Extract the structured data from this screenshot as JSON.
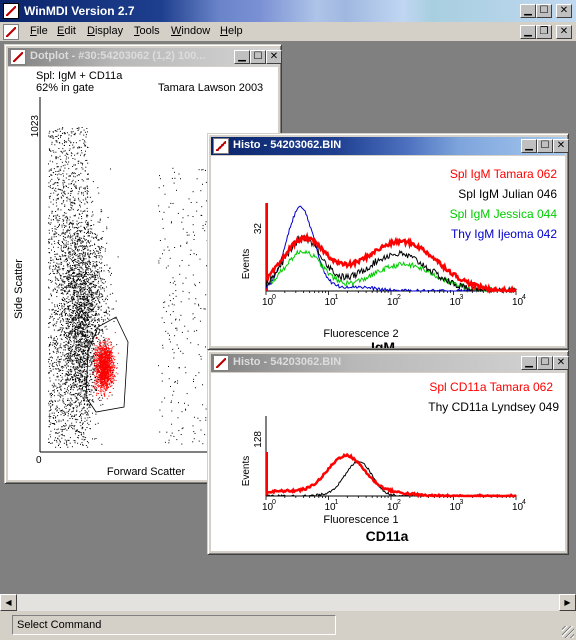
{
  "app": {
    "title": "WinMDI Version 2.7",
    "menu": [
      "File",
      "Edit",
      "Display",
      "Tools",
      "Window",
      "Help"
    ]
  },
  "dotplot": {
    "title": "Dotplot - #30:54203062 (1,2) 100...",
    "label_line1": "Spl: IgM + CD11a",
    "label_line2": "62% in gate",
    "author": "Tamara Lawson 2003",
    "y_max": "1023",
    "y_label": "Side Scatter",
    "x_min": "0",
    "x_label": "Forward Scatter",
    "colors": {
      "ungated": "#000000",
      "gated": "#ff0000"
    }
  },
  "histo_igm": {
    "title": "Histo - 54203062.BIN",
    "y_max": "32",
    "y_label": "Events",
    "x_ticks": [
      "10",
      "10",
      "10",
      "10",
      "10"
    ],
    "x_exponents": [
      "0",
      "1",
      "2",
      "3",
      "4"
    ],
    "x_label": "Fluorescence 2",
    "marker": "IgM",
    "legend": [
      {
        "label": "Spl IgM Tamara 062",
        "color": "#ff0000"
      },
      {
        "label": "Spl IgM Julian 046",
        "color": "#000000"
      },
      {
        "label": "Spl IgM Jessica 044",
        "color": "#00cc00"
      },
      {
        "label": "Thy IgM Ijeoma 042",
        "color": "#0000cc"
      }
    ]
  },
  "histo_cd11a": {
    "title": "Histo - 54203062.BIN",
    "y_max": "128",
    "y_label": "Events",
    "x_ticks": [
      "10",
      "10",
      "10",
      "10",
      "10"
    ],
    "x_exponents": [
      "0",
      "1",
      "2",
      "3",
      "4"
    ],
    "x_label": "Fluorescence 1",
    "marker": "CD11a",
    "legend": [
      {
        "label": "Spl CD11a Tamara 062",
        "color": "#ff0000"
      },
      {
        "label": "Thy CD11a Lyndsey 049",
        "color": "#000000"
      }
    ]
  },
  "status": {
    "text": "Select Command"
  },
  "icons": {
    "app": "winmdi-app-icon",
    "window": "histogram-window-icon",
    "minimize": "minimize-icon",
    "maximize": "maximize-icon",
    "restore": "restore-icon",
    "close": "close-icon"
  }
}
